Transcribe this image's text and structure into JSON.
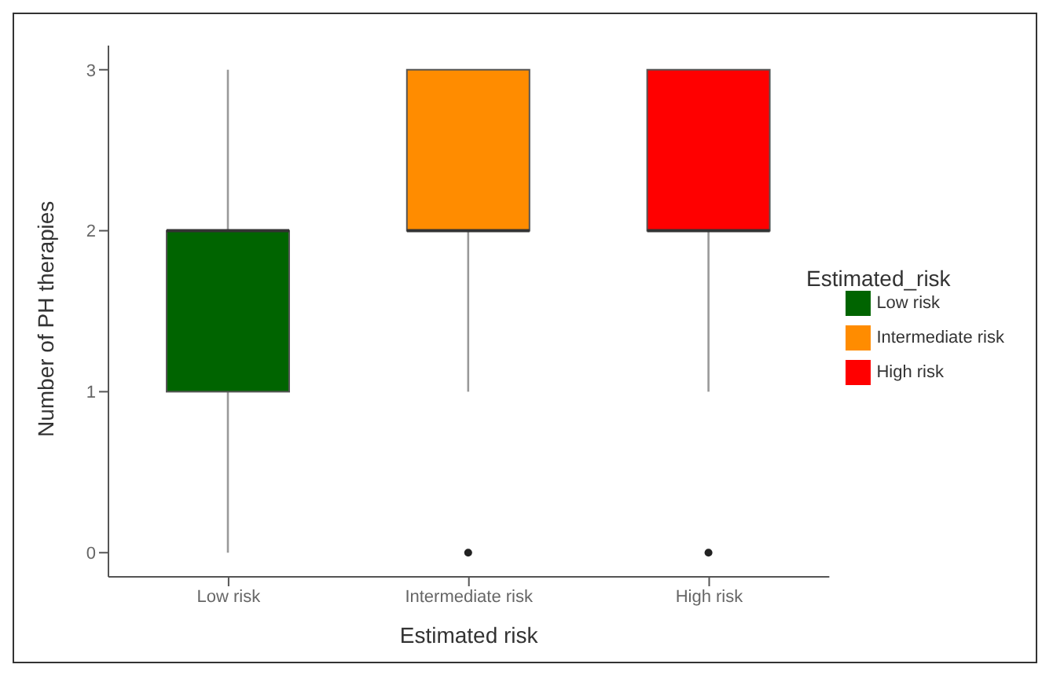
{
  "chart_data": {
    "type": "box",
    "xlabel": "Estimated risk",
    "ylabel": "Number of PH therapies",
    "legend_title": "Estimated_risk",
    "categories": [
      "Low risk",
      "Intermediate risk",
      "High risk"
    ],
    "series": [
      {
        "name": "Low risk",
        "color": "#006400",
        "boxes": [
          {
            "low": 0,
            "q1": 1,
            "median": 2,
            "q3": 2,
            "high": 3
          },
          null,
          null
        ]
      },
      {
        "name": "Intermediate risk",
        "color": "#ff8c00",
        "boxes": [
          null,
          {
            "low": 1,
            "q1": 2,
            "median": 2,
            "q3": 3,
            "high": 3,
            "outliers": [
              0
            ]
          },
          null
        ]
      },
      {
        "name": "High risk",
        "color": "#ff0000",
        "boxes": [
          null,
          null,
          {
            "low": 1,
            "q1": 2,
            "median": 2,
            "q3": 3,
            "high": 3,
            "outliers": [
              0
            ]
          }
        ]
      }
    ],
    "ylim": [
      -0.15,
      3.15
    ],
    "yticks": [
      0,
      1,
      2,
      3
    ],
    "legend": "right"
  }
}
